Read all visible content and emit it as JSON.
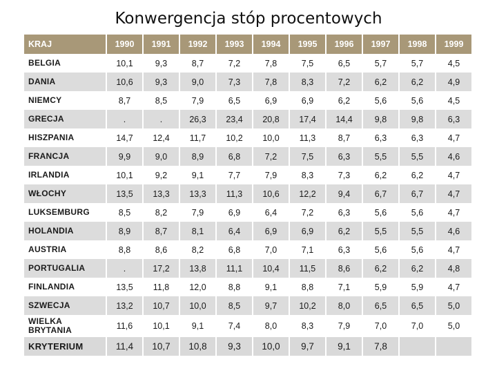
{
  "title": "Konwergencja stóp procentowych",
  "table": {
    "header": [
      "KRAJ",
      "1990",
      "1991",
      "1992",
      "1993",
      "1994",
      "1995",
      "1996",
      "1997",
      "1998",
      "1999"
    ],
    "rows": [
      {
        "country": "BELGIA",
        "values": [
          "10,1",
          "9,3",
          "8,7",
          "7,2",
          "7,8",
          "7,5",
          "6,5",
          "5,7",
          "5,7",
          "4,5"
        ]
      },
      {
        "country": "DANIA",
        "values": [
          "10,6",
          "9,3",
          "9,0",
          "7,3",
          "7,8",
          "8,3",
          "7,2",
          "6,2",
          "6,2",
          "4,9"
        ]
      },
      {
        "country": "NIEMCY",
        "values": [
          "8,7",
          "8,5",
          "7,9",
          "6,5",
          "6,9",
          "6,9",
          "6,2",
          "5,6",
          "5,6",
          "4,5"
        ]
      },
      {
        "country": "GRECJA",
        "values": [
          ".",
          ".",
          "26,3",
          "23,4",
          "20,8",
          "17,4",
          "14,4",
          "9,8",
          "9,8",
          "6,3"
        ]
      },
      {
        "country": "HISZPANIA",
        "values": [
          "14,7",
          "12,4",
          "11,7",
          "10,2",
          "10,0",
          "11,3",
          "8,7",
          "6,3",
          "6,3",
          "4,7"
        ]
      },
      {
        "country": "FRANCJA",
        "values": [
          "9,9",
          "9,0",
          "8,9",
          "6,8",
          "7,2",
          "7,5",
          "6,3",
          "5,5",
          "5,5",
          "4,6"
        ]
      },
      {
        "country": "IRLANDIA",
        "values": [
          "10,1",
          "9,2",
          "9,1",
          "7,7",
          "7,9",
          "8,3",
          "7,3",
          "6,2",
          "6,2",
          "4,7"
        ]
      },
      {
        "country": "WŁOCHY",
        "values": [
          "13,5",
          "13,3",
          "13,3",
          "11,3",
          "10,6",
          "12,2",
          "9,4",
          "6,7",
          "6,7",
          "4,7"
        ]
      },
      {
        "country": "LUKSEMBURG",
        "values": [
          "8,5",
          "8,2",
          "7,9",
          "6,9",
          "6,4",
          "7,2",
          "6,3",
          "5,6",
          "5,6",
          "4,7"
        ]
      },
      {
        "country": "HOLANDIA",
        "values": [
          "8,9",
          "8,7",
          "8,1",
          "6,4",
          "6,9",
          "6,9",
          "6,2",
          "5,5",
          "5,5",
          "4,6"
        ]
      },
      {
        "country": "AUSTRIA",
        "values": [
          "8,8",
          "8,6",
          "8,2",
          "6,8",
          "7,0",
          "7,1",
          "6,3",
          "5,6",
          "5,6",
          "4,7"
        ]
      },
      {
        "country": "PORTUGALIA",
        "values": [
          ".",
          "17,2",
          "13,8",
          "11,1",
          "10,4",
          "11,5",
          "8,6",
          "6,2",
          "6,2",
          "4,8"
        ]
      },
      {
        "country": "FINLANDIA",
        "values": [
          "13,5",
          "11,8",
          "12,0",
          "8,8",
          "9,1",
          "8,8",
          "7,1",
          "5,9",
          "5,9",
          "4,7"
        ]
      },
      {
        "country": "SZWECJA",
        "values": [
          "13,2",
          "10,7",
          "10,0",
          "8,5",
          "9,7",
          "10,2",
          "8,0",
          "6,5",
          "6,5",
          "5,0"
        ]
      },
      {
        "country": "WIELKA BRYTANIA",
        "values": [
          "11,6",
          "10,1",
          "9,1",
          "7,4",
          "8,0",
          "8,3",
          "7,9",
          "7,0",
          "7,0",
          "5,0"
        ]
      },
      {
        "country": "KRYTERIUM",
        "values": [
          "11,4",
          "10,7",
          "10,8",
          "9,3",
          "10,0",
          "9,7",
          "9,1",
          "7,8",
          "",
          ""
        ]
      }
    ]
  }
}
